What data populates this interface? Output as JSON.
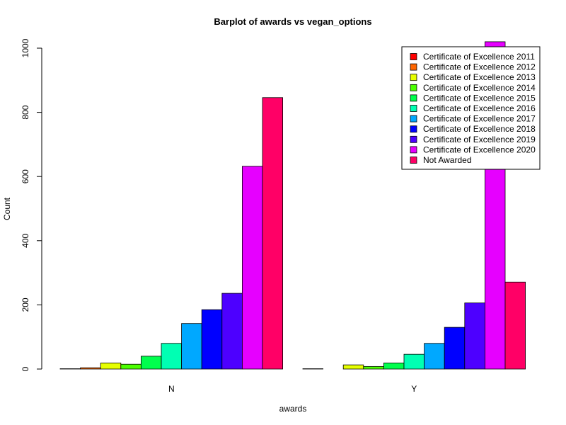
{
  "chart_data": {
    "type": "bar",
    "title": "Barplot of awards vs vegan_options",
    "xlabel": "awards",
    "ylabel": "Count",
    "ylim": [
      0,
      1000
    ],
    "yticks": [
      0,
      200,
      400,
      600,
      800,
      1000
    ],
    "categories": [
      "N",
      "Y"
    ],
    "legend_position": "top-right",
    "grid": false,
    "series": [
      {
        "name": "Certificate of Excellence 2011",
        "color": "#FF0000",
        "values": [
          1,
          1
        ]
      },
      {
        "name": "Certificate of Excellence 2012",
        "color": "#FF6600",
        "values": [
          4,
          0
        ]
      },
      {
        "name": "Certificate of Excellence 2013",
        "color": "#E6FF00",
        "values": [
          19,
          13
        ]
      },
      {
        "name": "Certificate of Excellence 2014",
        "color": "#4CFF00",
        "values": [
          15,
          8
        ]
      },
      {
        "name": "Certificate of Excellence 2015",
        "color": "#00FF4D",
        "values": [
          40,
          19
        ]
      },
      {
        "name": "Certificate of Excellence 2016",
        "color": "#00FFB3",
        "values": [
          80,
          46
        ]
      },
      {
        "name": "Certificate of Excellence 2017",
        "color": "#00A8FF",
        "values": [
          142,
          80
        ]
      },
      {
        "name": "Certificate of Excellence 2018",
        "color": "#0000FF",
        "values": [
          185,
          130
        ]
      },
      {
        "name": "Certificate of Excellence 2019",
        "color": "#4D00FF",
        "values": [
          236,
          206
        ]
      },
      {
        "name": "Certificate of Excellence 2020",
        "color": "#E600FF",
        "values": [
          632,
          1020
        ]
      },
      {
        "name": "Not Awarded",
        "color": "#FF0066",
        "values": [
          846,
          271
        ]
      }
    ]
  }
}
